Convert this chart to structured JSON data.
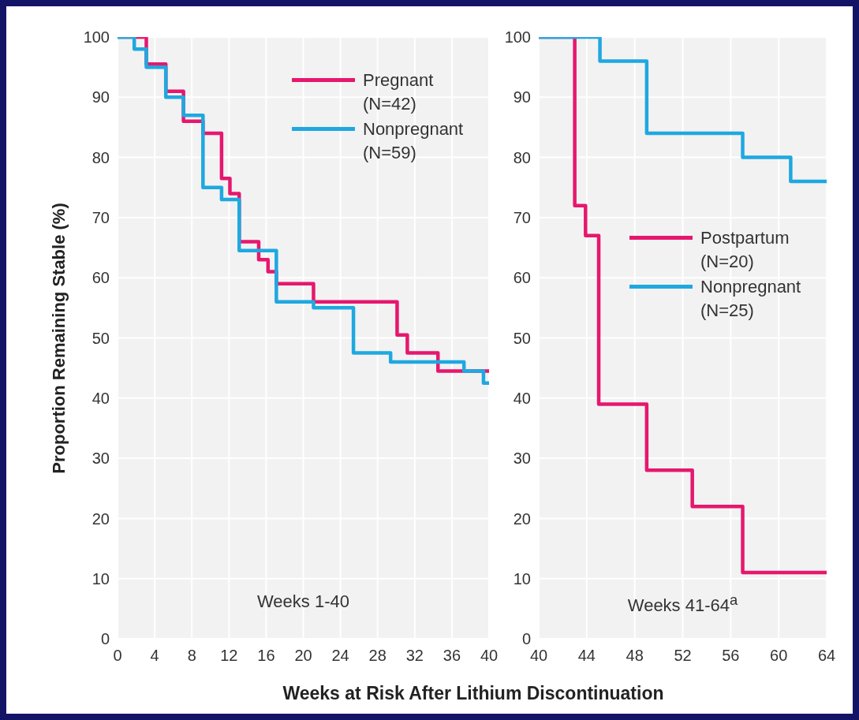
{
  "chart_data": [
    {
      "type": "step",
      "ylabel": "Proportion Remaining Stable (%)",
      "xlabel": "Weeks at Risk After Lithium Discontinuation",
      "xlim": [
        0,
        40
      ],
      "xticks": [
        0,
        4,
        8,
        12,
        16,
        20,
        24,
        28,
        32,
        36,
        40
      ],
      "ylim": [
        0,
        100
      ],
      "yticks": [
        0,
        10,
        20,
        30,
        40,
        50,
        60,
        70,
        80,
        90,
        100
      ],
      "grid": true,
      "legend": "top right",
      "annotations": [
        "Weeks 1-40"
      ],
      "series": [
        {
          "name": "Pregnant (N=42)",
          "color": "#e6176e",
          "x": [
            0,
            3.1,
            5.2,
            7.1,
            9.2,
            11.2,
            12.1,
            13.1,
            15.2,
            16.2,
            17.1,
            21.1,
            30.1,
            31.2,
            34.5,
            40
          ],
          "values": [
            100,
            95.5,
            91,
            86,
            84,
            76.5,
            74,
            66,
            63,
            61,
            59,
            56,
            50.5,
            47.5,
            44.5,
            44.5
          ]
        },
        {
          "name": "Nonpregnant (N=59)",
          "color": "#1fa8e0",
          "x": [
            0,
            1.8,
            3.1,
            5.2,
            7.1,
            9.2,
            11.2,
            13.1,
            17.1,
            21.1,
            25.4,
            29.4,
            37.3,
            39.4,
            40
          ],
          "values": [
            100,
            98,
            95,
            90,
            87,
            75,
            73,
            64.5,
            56,
            55,
            47.5,
            46,
            44.5,
            42.5,
            42.5
          ]
        }
      ]
    },
    {
      "type": "step",
      "xlim": [
        40,
        64
      ],
      "xticks": [
        40,
        44,
        48,
        52,
        56,
        60,
        64
      ],
      "ylim": [
        0,
        100
      ],
      "yticks": [
        0,
        10,
        20,
        30,
        40,
        50,
        60,
        70,
        80,
        90,
        100
      ],
      "grid": true,
      "legend": "right",
      "annotations": [
        "Weeks 41-64$^{a}$"
      ],
      "series": [
        {
          "name": "Postpartum (N=20)",
          "color": "#e6176e",
          "x": [
            40,
            43,
            43.9,
            45,
            49,
            52.8,
            57,
            64
          ],
          "values": [
            100,
            72,
            67,
            39,
            28,
            22,
            11,
            11
          ]
        },
        {
          "name": "Nonpregnant (N=25)",
          "color": "#1fa8e0",
          "x": [
            40,
            45.1,
            49,
            57,
            61,
            64
          ],
          "values": [
            100,
            96,
            84,
            80,
            76,
            76
          ]
        }
      ]
    }
  ]
}
